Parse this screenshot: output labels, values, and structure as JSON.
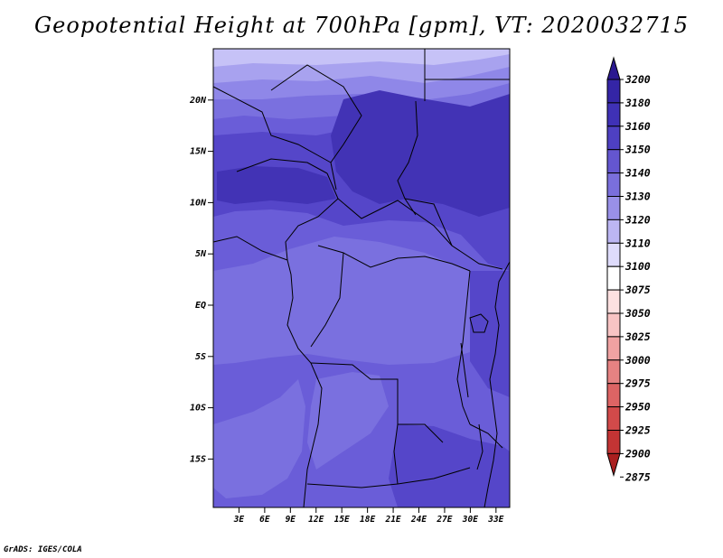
{
  "title": "Geopotential Height at 700hPa [gpm], VT: 2020032715",
  "credit": "GrADS: IGES/COLA",
  "map": {
    "lat_ticks": [
      {
        "label": "20N",
        "lat": 20
      },
      {
        "label": "15N",
        "lat": 15
      },
      {
        "label": "10N",
        "lat": 10
      },
      {
        "label": "5N",
        "lat": 5
      },
      {
        "label": "EQ",
        "lat": 0
      },
      {
        "label": "5S",
        "lat": -5
      },
      {
        "label": "10S",
        "lat": -10
      },
      {
        "label": "15S",
        "lat": -15
      }
    ],
    "lon_ticks": [
      {
        "label": "3E",
        "lon": 3
      },
      {
        "label": "6E",
        "lon": 6
      },
      {
        "label": "9E",
        "lon": 9
      },
      {
        "label": "12E",
        "lon": 12
      },
      {
        "label": "15E",
        "lon": 15
      },
      {
        "label": "18E",
        "lon": 18
      },
      {
        "label": "21E",
        "lon": 21
      },
      {
        "label": "24E",
        "lon": 24
      },
      {
        "label": "27E",
        "lon": 27
      },
      {
        "label": "30E",
        "lon": 30
      },
      {
        "label": "33E",
        "lon": 33
      }
    ],
    "colors": {
      "h3110": "#c6c2f7",
      "h3120": "#a8a2ef",
      "h3130": "#8f87e8",
      "h3140": "#7a70df",
      "h3150": "#6a5dd8",
      "h3160": "#5546c9",
      "h3180": "#4233b5"
    }
  },
  "colorbar": {
    "levels": [
      {
        "label": "3200",
        "color": "#2a1890"
      },
      {
        "label": "3180",
        "color": "#3425a6"
      },
      {
        "label": "3160",
        "color": "#3f31b6"
      },
      {
        "label": "3150",
        "color": "#4e40c2"
      },
      {
        "label": "3140",
        "color": "#6456d0"
      },
      {
        "label": "3130",
        "color": "#7a6fdc"
      },
      {
        "label": "3120",
        "color": "#9990e8"
      },
      {
        "label": "3110",
        "color": "#bcb6f3"
      },
      {
        "label": "3100",
        "color": "#dedbfb"
      },
      {
        "label": "3075",
        "color": "#ffffff"
      },
      {
        "label": "3050",
        "color": "#fde0e0"
      },
      {
        "label": "3025",
        "color": "#f8c4c4"
      },
      {
        "label": "3000",
        "color": "#f0a2a2"
      },
      {
        "label": "2975",
        "color": "#e68282"
      },
      {
        "label": "2950",
        "color": "#dd6464"
      },
      {
        "label": "2925",
        "color": "#d24a4a"
      },
      {
        "label": "2900",
        "color": "#c33434"
      },
      {
        "label": "2875",
        "color": "#aa1f1f"
      }
    ]
  }
}
